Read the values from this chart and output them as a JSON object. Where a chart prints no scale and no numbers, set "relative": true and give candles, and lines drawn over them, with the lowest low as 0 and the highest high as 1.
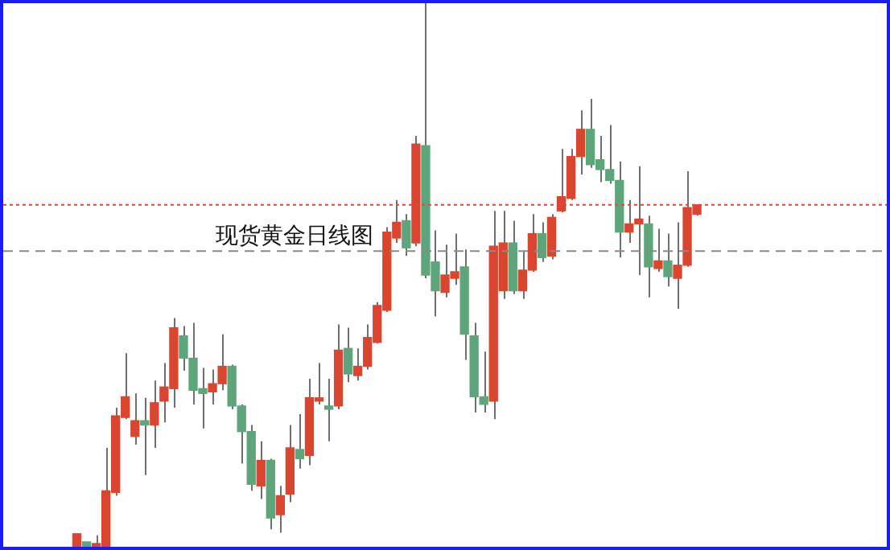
{
  "chart_data": {
    "type": "candlestick",
    "title": "现货黄金日线图",
    "relative": true,
    "categories": [
      null,
      null,
      null,
      null,
      null,
      null,
      null,
      null,
      null,
      null,
      null,
      null,
      null,
      null,
      null,
      null,
      null,
      null,
      null,
      null,
      null,
      null,
      null,
      null,
      null,
      null,
      null,
      null,
      null,
      null,
      null,
      null,
      null,
      null,
      null,
      null,
      null,
      null,
      null,
      null,
      null,
      null,
      null,
      null,
      null,
      null,
      null,
      null,
      null,
      null,
      null,
      null,
      null,
      null,
      null,
      null,
      null,
      null,
      null,
      null,
      null,
      null,
      null,
      null,
      null
    ],
    "ohlc": [
      [
        0,
        0.024,
        0,
        0.024
      ],
      [
        0.009,
        0.009,
        0,
        0
      ],
      [
        0,
        0.021,
        0,
        0.006
      ],
      [
        0,
        0.182,
        0,
        0.103
      ],
      [
        0.1,
        0.256,
        0.094,
        0.241
      ],
      [
        0.238,
        0.356,
        0.235,
        0.276
      ],
      [
        0.203,
        0.282,
        0.188,
        0.232
      ],
      [
        0.232,
        0.274,
        0.132,
        0.224
      ],
      [
        0.224,
        0.306,
        0.182,
        0.265
      ],
      [
        0.268,
        0.338,
        0.229,
        0.294
      ],
      [
        0.291,
        0.421,
        0.256,
        0.403
      ],
      [
        0.388,
        0.406,
        0.324,
        0.347
      ],
      [
        0.347,
        0.412,
        0.262,
        0.288
      ],
      [
        0.291,
        0.329,
        0.218,
        0.282
      ],
      [
        0.285,
        0.326,
        0.262,
        0.3
      ],
      [
        0.3,
        0.391,
        0.288,
        0.332
      ],
      [
        0.332,
        0.335,
        0.253,
        0.259
      ],
      [
        0.259,
        0.262,
        0.153,
        0.212
      ],
      [
        0.212,
        0.224,
        0.103,
        0.115
      ],
      [
        0.112,
        0.194,
        0.088,
        0.159
      ],
      [
        0.159,
        0.162,
        0.032,
        0.053
      ],
      [
        0.059,
        0.112,
        0.026,
        0.094
      ],
      [
        0.097,
        0.224,
        0.082,
        0.182
      ],
      [
        0.179,
        0.244,
        0.144,
        0.162
      ],
      [
        0.168,
        0.309,
        0.15,
        0.274
      ],
      [
        0.268,
        0.338,
        0.262,
        0.274
      ],
      [
        0.259,
        0.309,
        0.194,
        0.253
      ],
      [
        0.259,
        0.409,
        0.253,
        0.362
      ],
      [
        0.365,
        0.403,
        0.303,
        0.318
      ],
      [
        0.315,
        0.365,
        0.306,
        0.332
      ],
      [
        0.332,
        0.409,
        0.326,
        0.385
      ],
      [
        0.376,
        0.45,
        0.374,
        0.444
      ],
      [
        0.435,
        0.588,
        0.432,
        0.579
      ],
      [
        0.568,
        0.638,
        0.559,
        0.597
      ],
      [
        0.6,
        0.612,
        0.535,
        0.55
      ],
      [
        0.559,
        0.756,
        0.553,
        0.741
      ],
      [
        0.738,
        1,
        0.494,
        0.5
      ],
      [
        0.524,
        0.582,
        0.424,
        0.471
      ],
      [
        0.468,
        0.556,
        0.459,
        0.5
      ],
      [
        0.494,
        0.576,
        0.482,
        0.506
      ],
      [
        0.515,
        0.547,
        0.344,
        0.391
      ],
      [
        0.388,
        0.412,
        0.247,
        0.276
      ],
      [
        0.276,
        0.359,
        0.247,
        0.262
      ],
      [
        0.268,
        0.618,
        0.235,
        0.553
      ],
      [
        0.471,
        0.618,
        0.456,
        0.559
      ],
      [
        0.559,
        0.6,
        0.465,
        0.471
      ],
      [
        0.471,
        0.544,
        0.456,
        0.509
      ],
      [
        0.509,
        0.612,
        0.506,
        0.576
      ],
      [
        0.576,
        0.597,
        0.524,
        0.532
      ],
      [
        0.535,
        0.612,
        0.529,
        0.606
      ],
      [
        0.618,
        0.732,
        0.615,
        0.644
      ],
      [
        0.641,
        0.732,
        0.638,
        0.718
      ],
      [
        0.718,
        0.803,
        0.685,
        0.768
      ],
      [
        0.768,
        0.824,
        0.697,
        0.703
      ],
      [
        0.712,
        0.756,
        0.671,
        0.694
      ],
      [
        0.694,
        0.776,
        0.668,
        0.674
      ],
      [
        0.674,
        0.709,
        0.532,
        0.579
      ],
      [
        0.579,
        0.638,
        0.559,
        0.594
      ],
      [
        0.594,
        0.7,
        0.5,
        0.603
      ],
      [
        0.594,
        0.609,
        0.459,
        0.515
      ],
      [
        0.512,
        0.585,
        0.506,
        0.526
      ],
      [
        0.526,
        0.576,
        0.479,
        0.497
      ],
      [
        0.494,
        0.597,
        0.438,
        0.518
      ],
      [
        0.518,
        0.691,
        0.515,
        0.624
      ],
      [
        0.612,
        0.629,
        0.609,
        0.629
      ]
    ],
    "colors": [
      "#d9452f",
      "#5fa57c",
      "#d9452f",
      "#d9452f",
      "#d9452f",
      "#d9452f",
      "#d9452f",
      "#5fa57c",
      "#d9452f",
      "#d9452f",
      "#d9452f",
      "#5fa57c",
      "#5fa57c",
      "#5fa57c",
      "#d9452f",
      "#d9452f",
      "#5fa57c",
      "#5fa57c",
      "#5fa57c",
      "#d9452f",
      "#5fa57c",
      "#d9452f",
      "#d9452f",
      "#5fa57c",
      "#d9452f",
      "#d9452f",
      "#5fa57c",
      "#d9452f",
      "#5fa57c",
      "#d9452f",
      "#d9452f",
      "#d9452f",
      "#d9452f",
      "#d9452f",
      "#5fa57c",
      "#d9452f",
      "#5fa57c",
      "#5fa57c",
      "#d9452f",
      "#d9452f",
      "#5fa57c",
      "#5fa57c",
      "#5fa57c",
      "#d9452f",
      "#d9452f",
      "#5fa57c",
      "#d9452f",
      "#d9452f",
      "#5fa57c",
      "#d9452f",
      "#d9452f",
      "#d9452f",
      "#d9452f",
      "#5fa57c",
      "#5fa57c",
      "#5fa57c",
      "#5fa57c",
      "#d9452f",
      "#d9452f",
      "#5fa57c",
      "#d9452f",
      "#5fa57c",
      "#d9452f",
      "#d9452f",
      "#d9452f"
    ],
    "ref_lines": [
      {
        "axis": "y",
        "value": 0.629,
        "color": "#e8443a",
        "line_style": "dotted"
      },
      {
        "axis": "y",
        "value": 0.544,
        "color": "#8a8a8a",
        "line_style": "dashed"
      }
    ]
  }
}
